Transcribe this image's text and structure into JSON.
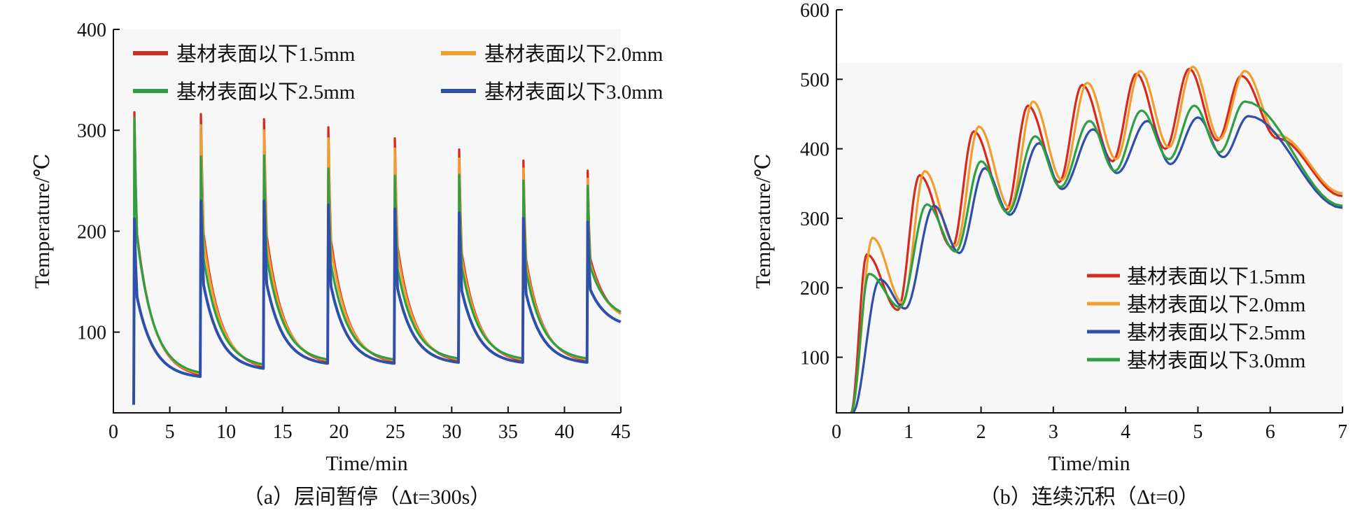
{
  "chart_data": [
    {
      "type": "line",
      "caption": "（a）层间暂停（Δt=300s）",
      "xlabel": "Time/min",
      "ylabel": "Temperature/℃",
      "xlim": [
        0,
        45
      ],
      "ylim": [
        20,
        400
      ],
      "xticks": [
        0,
        5,
        10,
        15,
        20,
        25,
        30,
        35,
        40,
        45
      ],
      "yticks": [
        100,
        200,
        300,
        400
      ],
      "legend_position": "top",
      "pulse_times": [
        1.8,
        7.7,
        13.3,
        19.0,
        24.9,
        30.6,
        36.3,
        42.0
      ],
      "series": [
        {
          "name": "基材表面以下1.5mm",
          "color": "#d62a1f",
          "peaks": [
            318,
            316,
            311,
            303,
            292,
            281,
            270,
            260
          ],
          "valleys": [
            28,
            58,
            66,
            71,
            71,
            72,
            72,
            72
          ],
          "end_value": 118
        },
        {
          "name": "基材表面以下2.0mm",
          "color": "#f29d2c",
          "peaks": [
            312,
            305,
            300,
            292,
            282,
            272,
            262,
            252
          ],
          "valleys": [
            28,
            59,
            67,
            72,
            72,
            73,
            73,
            73
          ],
          "end_value": 118
        },
        {
          "name": "基材表面以下2.5mm",
          "color": "#2ea043",
          "peaks": [
            312,
            274,
            275,
            262,
            255,
            256,
            250,
            245
          ],
          "valleys": [
            28,
            60,
            68,
            73,
            73,
            74,
            74,
            74
          ],
          "end_value": 120
        },
        {
          "name": "基材表面以下3.0mm",
          "color": "#2f4fa8",
          "peaks": [
            212,
            230,
            230,
            226,
            222,
            218,
            213,
            209
          ],
          "valleys": [
            28,
            56,
            64,
            69,
            69,
            70,
            70,
            70
          ],
          "end_value": 110
        }
      ]
    },
    {
      "type": "line",
      "caption": "（b）连续沉积（Δt=0）",
      "xlabel": "Time/min",
      "ylabel": "Temperature/℃",
      "xlim": [
        0,
        7
      ],
      "ylim": [
        20,
        600
      ],
      "xticks": [
        0,
        1,
        2,
        3,
        4,
        5,
        6,
        7
      ],
      "yticks": [
        100,
        200,
        300,
        400,
        500,
        600
      ],
      "legend_position": "bottom-right",
      "series": [
        {
          "name": "基材表面以下1.5mm",
          "color": "#d62a1f",
          "points": [
            [
              0.2,
              20
            ],
            [
              0.42,
              248
            ],
            [
              0.85,
              168
            ],
            [
              1.15,
              362
            ],
            [
              1.6,
              258
            ],
            [
              1.9,
              425
            ],
            [
              2.35,
              312
            ],
            [
              2.65,
              462
            ],
            [
              3.08,
              352
            ],
            [
              3.4,
              492
            ],
            [
              3.82,
              382
            ],
            [
              4.15,
              508
            ],
            [
              4.55,
              400
            ],
            [
              4.88,
              515
            ],
            [
              5.27,
              412
            ],
            [
              5.6,
              505
            ],
            [
              6.1,
              415
            ],
            [
              7.0,
              332
            ]
          ]
        },
        {
          "name": "基材表面以下2.0mm",
          "color": "#f29d2c",
          "points": [
            [
              0.2,
              20
            ],
            [
              0.5,
              272
            ],
            [
              0.92,
              178
            ],
            [
              1.22,
              368
            ],
            [
              1.65,
              260
            ],
            [
              1.97,
              432
            ],
            [
              2.4,
              315
            ],
            [
              2.72,
              468
            ],
            [
              3.12,
              355
            ],
            [
              3.47,
              495
            ],
            [
              3.87,
              385
            ],
            [
              4.2,
              512
            ],
            [
              4.6,
              402
            ],
            [
              4.93,
              518
            ],
            [
              5.3,
              414
            ],
            [
              5.65,
              512
            ],
            [
              6.1,
              420
            ],
            [
              7.0,
              336
            ]
          ]
        },
        {
          "name": "基材表面以下2.5mm",
          "color": "#2f4fa8",
          "points": [
            [
              0.22,
              20
            ],
            [
              0.6,
              212
            ],
            [
              0.95,
              170
            ],
            [
              1.35,
              318
            ],
            [
              1.7,
              250
            ],
            [
              2.05,
              372
            ],
            [
              2.4,
              305
            ],
            [
              2.8,
              408
            ],
            [
              3.12,
              342
            ],
            [
              3.55,
              428
            ],
            [
              3.88,
              365
            ],
            [
              4.3,
              440
            ],
            [
              4.62,
              378
            ],
            [
              5.0,
              445
            ],
            [
              5.35,
              388
            ],
            [
              5.7,
              447
            ],
            [
              7.0,
              315
            ]
          ]
        },
        {
          "name": "基材表面以下3.0mm",
          "color": "#2ea043",
          "points": [
            [
              0.2,
              20
            ],
            [
              0.45,
              220
            ],
            [
              0.88,
              172
            ],
            [
              1.25,
              320
            ],
            [
              1.65,
              252
            ],
            [
              2.0,
              382
            ],
            [
              2.37,
              308
            ],
            [
              2.75,
              418
            ],
            [
              3.1,
              345
            ],
            [
              3.5,
              440
            ],
            [
              3.85,
              368
            ],
            [
              4.22,
              455
            ],
            [
              4.6,
              385
            ],
            [
              4.95,
              462
            ],
            [
              5.3,
              395
            ],
            [
              5.65,
              468
            ],
            [
              7.0,
              318
            ]
          ]
        }
      ]
    }
  ]
}
